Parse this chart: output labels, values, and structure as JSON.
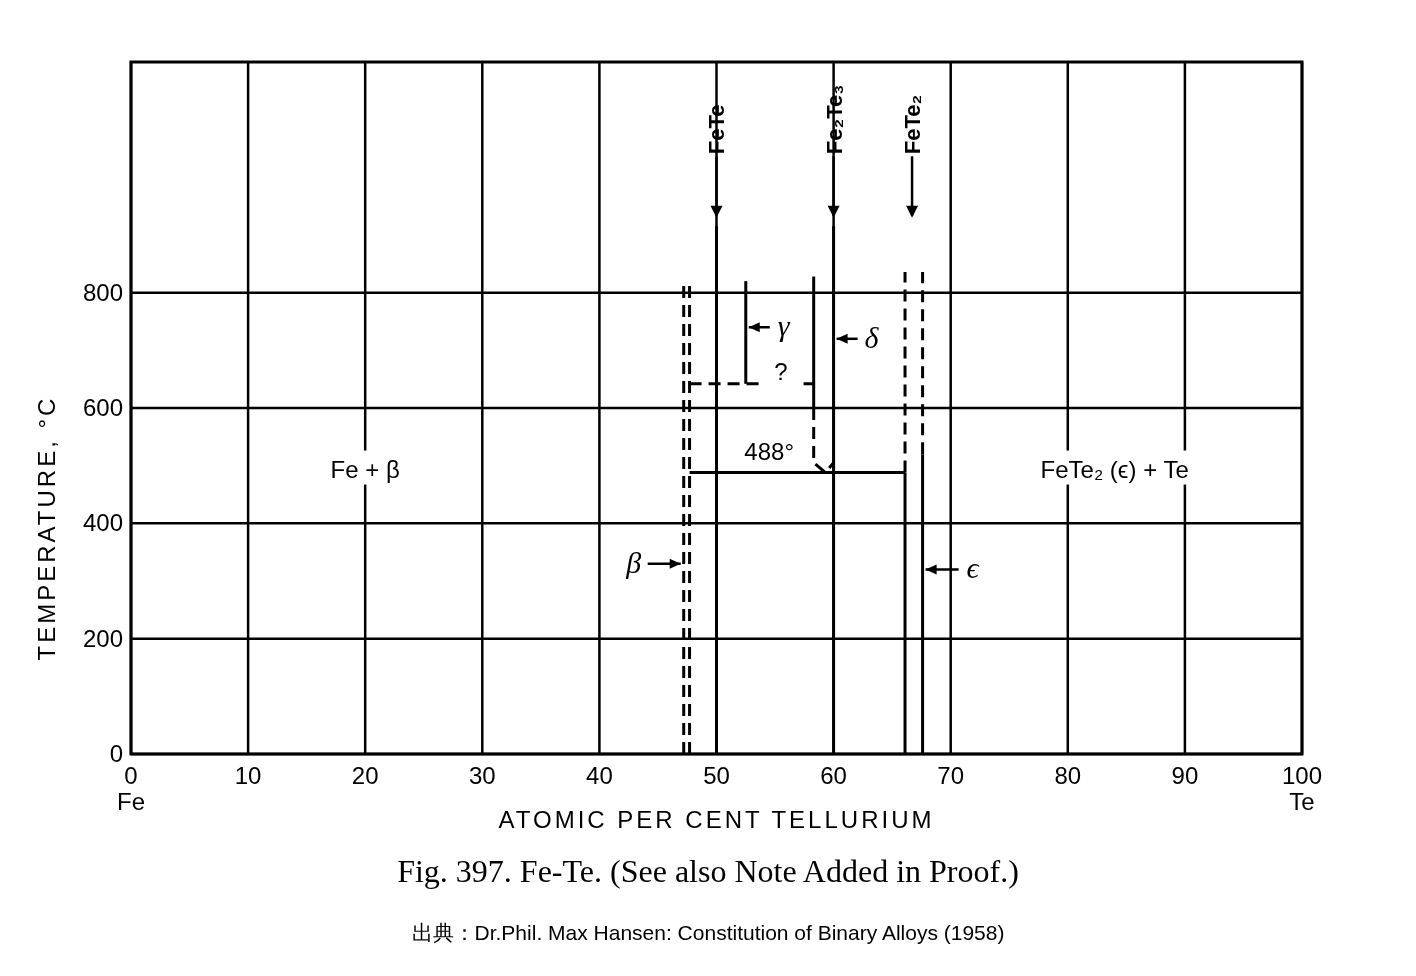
{
  "chart_data": {
    "type": "line",
    "title": "Fig. 397. Fe-Te. (See also Note Added in Proof.)",
    "xlabel": "ATOMIC PER CENT TELLURIUM",
    "ylabel": "TEMPERATURE, °C",
    "xlim": [
      0,
      100
    ],
    "ylim": [
      0,
      1200
    ],
    "xticks": [
      {
        "value": 0,
        "label": "0\nFe"
      },
      10,
      20,
      30,
      40,
      50,
      60,
      70,
      80,
      90,
      {
        "value": 100,
        "label": "100\nTe"
      }
    ],
    "yticks": [
      0,
      200,
      400,
      600,
      800
    ],
    "grid": true,
    "series": [
      {
        "color": "#000000",
        "line_style": "dashed",
        "x": [
          47.2,
          47.2
        ],
        "values": [
          0,
          820
        ]
      },
      {
        "color": "#000000",
        "line_style": "dashed",
        "x": [
          47.7,
          47.7
        ],
        "values": [
          0,
          820
        ]
      },
      {
        "color": "#000000",
        "line_style": "solid",
        "x": [
          50,
          50
        ],
        "values": [
          0,
          915
        ]
      },
      {
        "color": "#000000",
        "line_style": "solid",
        "x": [
          52.5,
          52.5
        ],
        "values": [
          642,
          820
        ]
      },
      {
        "color": "#000000",
        "line_style": "dashed",
        "x": [
          47.7,
          58.3
        ],
        "values": [
          642,
          642
        ]
      },
      {
        "color": "#000000",
        "line_style": "solid",
        "x": [
          58.3,
          58.3
        ],
        "values": [
          828,
          600
        ]
      },
      {
        "color": "#000000",
        "line_style": "dashed",
        "x": [
          58.3,
          58.3,
          59.3,
          60
        ],
        "values": [
          600,
          505,
          488,
          505
        ]
      },
      {
        "color": "#000000",
        "line_style": "solid",
        "x": [
          60,
          60
        ],
        "values": [
          0,
          915
        ]
      },
      {
        "color": "#000000",
        "line_style": "solid",
        "x": [
          47.7,
          66.1
        ],
        "values": [
          488,
          488
        ]
      },
      {
        "color": "#000000",
        "line_style": "solid",
        "x": [
          66.1,
          66.1
        ],
        "values": [
          0,
          488
        ]
      },
      {
        "color": "#000000",
        "line_style": "dashed",
        "x": [
          66.1,
          66.1
        ],
        "values": [
          488,
          836
        ]
      },
      {
        "color": "#000000",
        "line_style": "solid",
        "x": [
          67.6,
          67.6
        ],
        "values": [
          0,
          520
        ]
      },
      {
        "color": "#000000",
        "line_style": "dashed",
        "x": [
          67.6,
          67.6
        ],
        "values": [
          520,
          836
        ]
      }
    ],
    "annotations": [
      "Fe + β",
      "FeTe₂ (ϵ) + Te",
      {
        "text": "488°",
        "x": 54.5,
        "y": 488
      },
      {
        "text": "?",
        "x": 55.5,
        "y": 665
      },
      {
        "text": "γ",
        "x": 52.5,
        "y": 740
      },
      {
        "text": "δ",
        "x": 60,
        "y": 720
      },
      {
        "text": "β",
        "x": 47.2,
        "y": 330
      },
      {
        "text": "ϵ",
        "x": 67.6,
        "y": 320
      },
      "FeTe",
      "Fe₂Te₃",
      "FeTe₂",
      "出典：Dr.Phil. Max Hansen: Constitution of Binary Alloys (1958)"
    ]
  }
}
